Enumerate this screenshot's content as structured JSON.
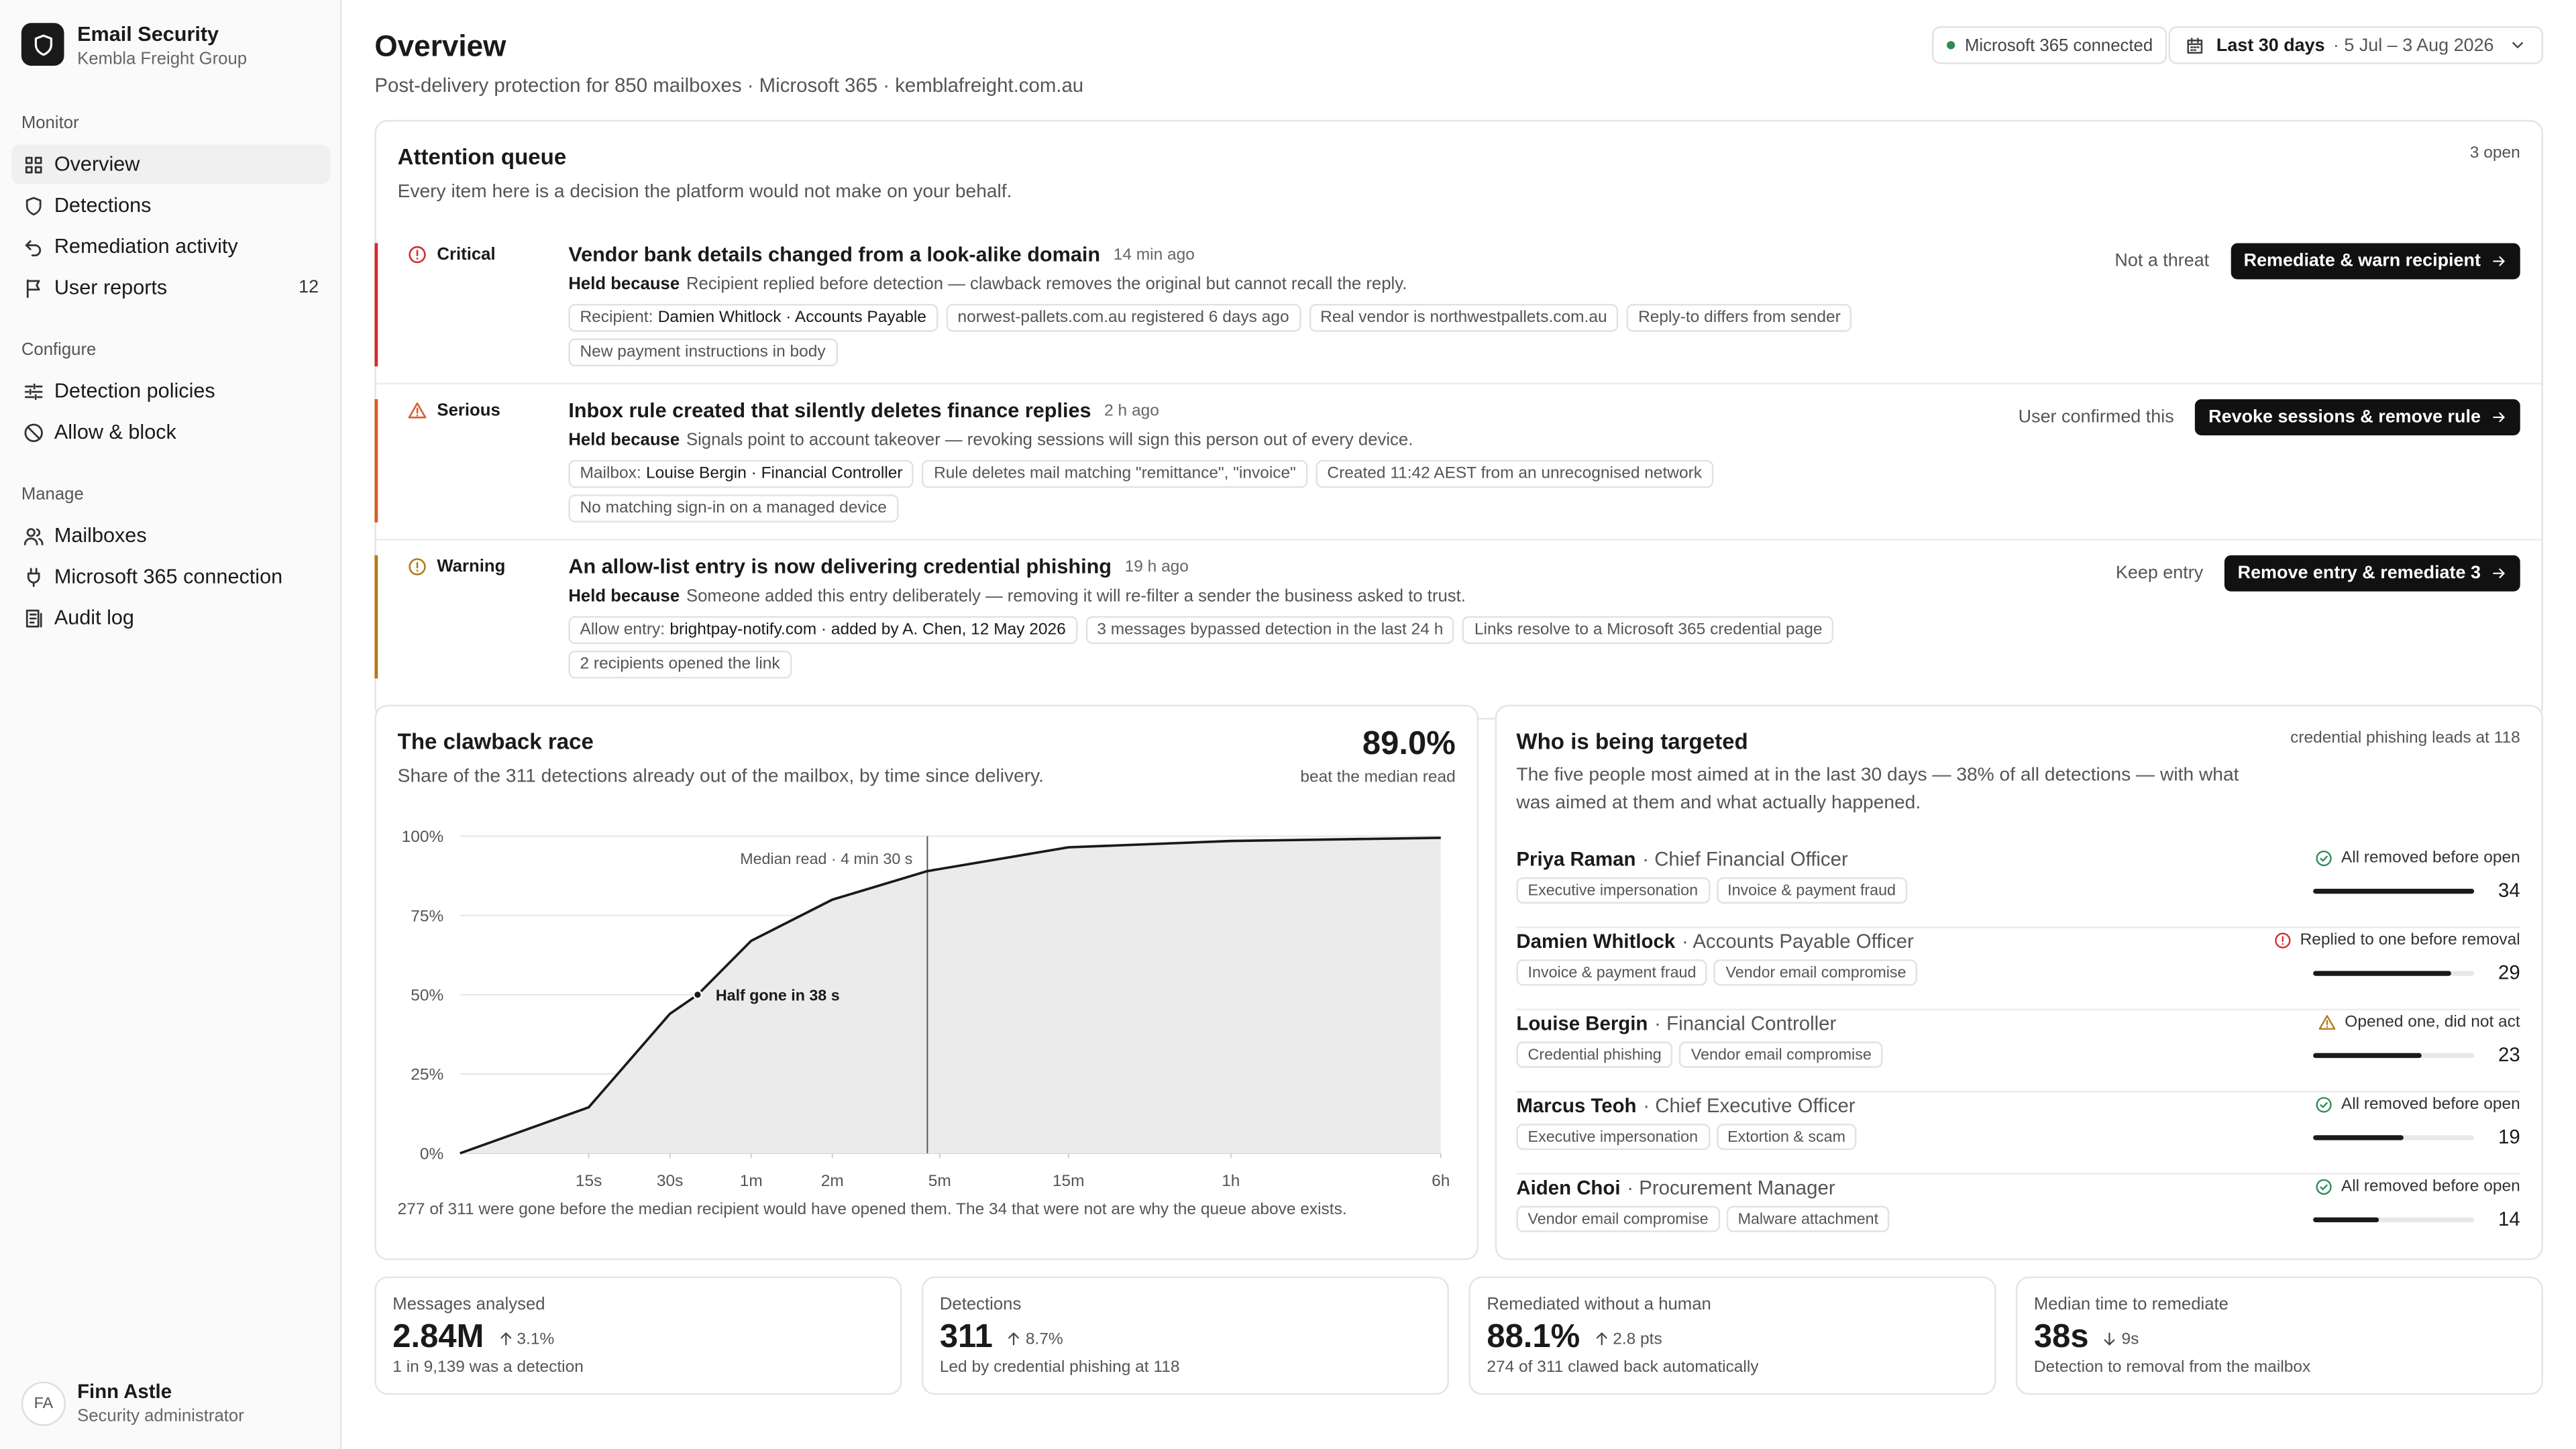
{
  "sidebar": {
    "app_name": "Email Security",
    "org": "Kembla Freight Group",
    "sections": [
      {
        "title": "Monitor",
        "items": [
          {
            "label": "Overview",
            "active": true
          },
          {
            "label": "Detections"
          },
          {
            "label": "Remediation activity"
          },
          {
            "label": "User reports",
            "badge": "12"
          }
        ]
      },
      {
        "title": "Configure",
        "items": [
          {
            "label": "Detection policies"
          },
          {
            "label": "Allow & block"
          }
        ]
      },
      {
        "title": "Manage",
        "items": [
          {
            "label": "Mailboxes"
          },
          {
            "label": "Microsoft 365 connection"
          },
          {
            "label": "Audit log"
          }
        ]
      }
    ],
    "user": {
      "initials": "FA",
      "name": "Finn Astle",
      "role": "Security administrator"
    }
  },
  "header": {
    "title": "Overview",
    "subtitle": "Post-delivery protection for 850 mailboxes · Microsoft 365 · kemblafreight.com.au",
    "status": "Microsoft 365 connected",
    "range_label": "Last 30 days",
    "range_dates": "· 5 Jul – 3 Aug 2026"
  },
  "queue": {
    "title": "Attention queue",
    "count": "3 open",
    "subtitle": "Every item here is a decision the platform would not make on your behalf.",
    "held_label": "Held because",
    "items": [
      {
        "severity": "Critical",
        "icon": "alert",
        "color": "#cf2e2e",
        "title": "Vendor bank details changed from a look-alike domain",
        "age": "14 min ago",
        "held_text": "Recipient replied before detection — clawback removes the original but cannot recall the reply.",
        "tags": [
          {
            "key": "Recipient:",
            "value": "Damien Whitlock · Accounts Payable"
          },
          "norwest-pallets.com.au registered 6 days ago",
          "Real vendor is northwestpallets.com.au",
          "Reply-to differs from sender",
          "New payment instructions in body"
        ],
        "secondary": "Not a threat",
        "primary": "Remediate & warn recipient"
      },
      {
        "severity": "Serious",
        "icon": "triangle",
        "color": "#d4602a",
        "title": "Inbox rule created that silently deletes finance replies",
        "age": "2 h ago",
        "held_text": "Signals point to account takeover — revoking sessions will sign this person out of every device.",
        "tags": [
          {
            "key": "Mailbox:",
            "value": "Louise Bergin · Financial Controller"
          },
          "Rule deletes mail matching \"remittance\", \"invoice\"",
          "Created 11:42 AEST from an unrecognised network",
          "No matching sign-in on a managed device"
        ],
        "secondary": "User confirmed this",
        "primary": "Revoke sessions & remove rule"
      },
      {
        "severity": "Warning",
        "icon": "alert",
        "color": "#b27a1c",
        "title": "An allow-list entry is now delivering credential phishing",
        "age": "19 h ago",
        "held_text": "Someone added this entry deliberately — removing it will re-filter a sender the business asked to trust.",
        "tags": [
          {
            "key": "Allow entry:",
            "value": "brightpay-notify.com · added by A. Chen, 12 May 2026"
          },
          "3 messages bypassed detection in the last 24 h",
          "Links resolve to a Microsoft 365 credential page",
          "2 recipients opened the link"
        ],
        "secondary": "Keep entry",
        "primary": "Remove entry & remediate 3"
      }
    ]
  },
  "chart_data": {
    "type": "line",
    "title": "The clawback race",
    "subtitle": "Share of the 311 detections already out of the mailbox, by time since delivery.",
    "headline": "89.0%",
    "headline_caption": "beat the median read",
    "footnote": "277 of 311 were gone before the median recipient would have opened them. The 34 that were not are why the queue above exists.",
    "x": [
      5,
      15,
      30,
      38,
      60,
      120,
      270,
      900,
      3600,
      21600
    ],
    "values": [
      0,
      14.5,
      44,
      50,
      67,
      80,
      89,
      96.5,
      98.5,
      99.5
    ],
    "x_scale": "log",
    "xlim": [
      5,
      21600
    ],
    "xticks": [
      {
        "value": 15,
        "label": "15s"
      },
      {
        "value": 30,
        "label": "30s"
      },
      {
        "value": 60,
        "label": "1m"
      },
      {
        "value": 120,
        "label": "2m"
      },
      {
        "value": 300,
        "label": "5m"
      },
      {
        "value": 900,
        "label": "15m"
      },
      {
        "value": 3600,
        "label": "1h"
      },
      {
        "value": 21600,
        "label": "6h"
      }
    ],
    "ylim": [
      0,
      100
    ],
    "yticks": [
      {
        "value": 0,
        "label": "0%"
      },
      {
        "value": 25,
        "label": "25%"
      },
      {
        "value": 50,
        "label": "50%"
      },
      {
        "value": 75,
        "label": "75%"
      },
      {
        "value": 100,
        "label": "100%"
      }
    ],
    "grid": true,
    "color": "#1a1a1a",
    "area_color": "#ebebeb",
    "median": {
      "x": 270,
      "label": "Median read · 4 min 30 s"
    },
    "highlight": {
      "x": 38,
      "y": 50,
      "label": "Half gone in 38 s"
    }
  },
  "targets": {
    "title": "Who is being targeted",
    "note": "credential phishing leads at 118",
    "subtitle": "The five people most aimed at in the last 30 days — 38% of all detections — with what was aimed at them and what actually happened.",
    "bar_color": "#1a1a1a",
    "people": [
      {
        "name": "Priya Raman",
        "role": "· Chief Financial Officer",
        "tags": [
          "Executive impersonation",
          "Invoice & payment fraud"
        ],
        "status": "All removed before open",
        "status_kind": "ok",
        "count": 34
      },
      {
        "name": "Damien Whitlock",
        "role": "· Accounts Payable Officer",
        "tags": [
          "Invoice & payment fraud",
          "Vendor email compromise"
        ],
        "status": "Replied to one before removal",
        "status_kind": "critical",
        "count": 29
      },
      {
        "name": "Louise Bergin",
        "role": "· Financial Controller",
        "tags": [
          "Credential phishing",
          "Vendor email compromise"
        ],
        "status": "Opened one, did not act",
        "status_kind": "warning",
        "count": 23
      },
      {
        "name": "Marcus Teoh",
        "role": "· Chief Executive Officer",
        "tags": [
          "Executive impersonation",
          "Extortion & scam"
        ],
        "status": "All removed before open",
        "status_kind": "ok",
        "count": 19
      },
      {
        "name": "Aiden Choi",
        "role": "· Procurement Manager",
        "tags": [
          "Vendor email compromise",
          "Malware attachment"
        ],
        "status": "All removed before open",
        "status_kind": "ok",
        "count": 14
      }
    ]
  },
  "kpis": [
    {
      "label": "Messages analysed",
      "value": "2.84M",
      "change": "3.1%",
      "direction": "up",
      "note": "1 in 9,139 was a detection"
    },
    {
      "label": "Detections",
      "value": "311",
      "change": "8.7%",
      "direction": "up",
      "note": "Led by credential phishing at 118"
    },
    {
      "label": "Remediated without a human",
      "value": "88.1%",
      "change": "2.8 pts",
      "direction": "up",
      "note": "274 of 311 clawed back automatically"
    },
    {
      "label": "Median time to remediate",
      "value": "38s",
      "change": "9s",
      "direction": "down",
      "note": "Detection to removal from the mailbox"
    }
  ]
}
